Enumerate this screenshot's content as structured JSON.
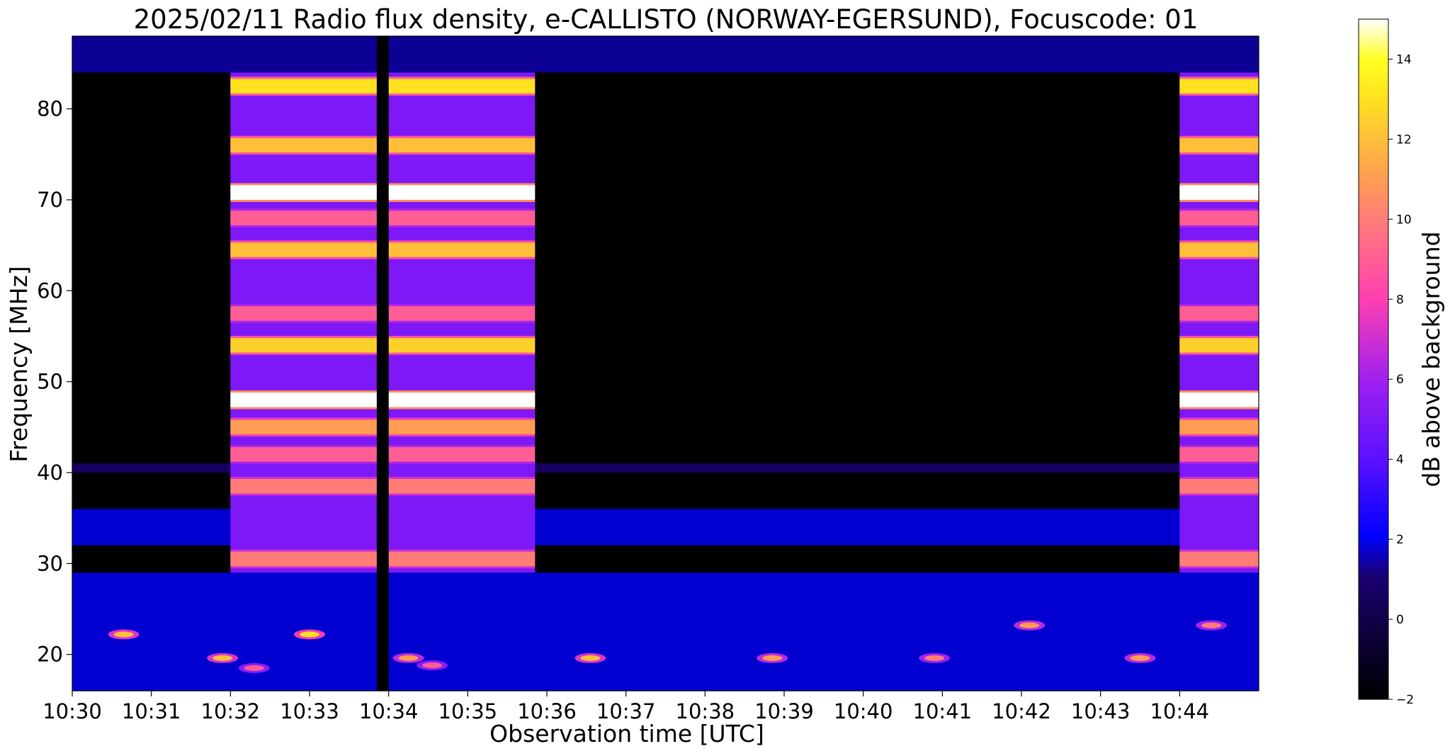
{
  "chart_data": {
    "type": "heatmap",
    "title": "2025/02/11  Radio flux density, e-CALLISTO (NORWAY-EGERSUND), Focuscode: 01",
    "xlabel": "Observation time [UTC]",
    "ylabel": "Frequency [MHz]",
    "colorbar_label": "dB above background",
    "colormap": "gnuplot2",
    "x_ticks": [
      "10:30",
      "10:31",
      "10:32",
      "10:33",
      "10:34",
      "10:35",
      "10:36",
      "10:37",
      "10:38",
      "10:39",
      "10:40",
      "10:41",
      "10:42",
      "10:43",
      "10:44"
    ],
    "xlim_minutes": [
      0,
      15
    ],
    "y_ticks": [
      20,
      30,
      40,
      50,
      60,
      70,
      80
    ],
    "ylim": [
      16,
      88
    ],
    "colorbar_ticks": [
      -2,
      0,
      2,
      4,
      6,
      8,
      10,
      12,
      14
    ],
    "clim": [
      -2,
      15
    ],
    "active_intervals_minutes": [
      [
        2.0,
        3.85
      ],
      [
        4.0,
        5.85
      ],
      [
        14.0,
        15.0
      ]
    ],
    "data_gap_minutes": [
      3.85,
      4.0
    ],
    "emission_bands_mhz": [
      {
        "freq": 82.5,
        "db": 13
      },
      {
        "freq": 76,
        "db": 12
      },
      {
        "freq": 70.8,
        "db": 15
      },
      {
        "freq": 68,
        "db": 9
      },
      {
        "freq": 64.5,
        "db": 12
      },
      {
        "freq": 57.5,
        "db": 9
      },
      {
        "freq": 54,
        "db": 12.5
      },
      {
        "freq": 48,
        "db": 15
      },
      {
        "freq": 45,
        "db": 11
      },
      {
        "freq": 42,
        "db": 9
      },
      {
        "freq": 38.5,
        "db": 10
      },
      {
        "freq": 30.5,
        "db": 10
      }
    ],
    "background_bands_mhz": [
      {
        "freq_range": [
          84,
          88
        ],
        "db": 1.5
      },
      {
        "freq_range": [
          40,
          41
        ],
        "db": 1
      },
      {
        "freq_range": [
          32,
          36
        ],
        "db": 2
      },
      {
        "freq_range": [
          16,
          29
        ],
        "db": 2
      }
    ],
    "bright_spots": [
      {
        "t": 0.65,
        "freq": 22.2,
        "db": 12
      },
      {
        "t": 1.9,
        "freq": 19.6,
        "db": 12
      },
      {
        "t": 2.3,
        "freq": 18.5,
        "db": 9
      },
      {
        "t": 3.0,
        "freq": 22.2,
        "db": 13
      },
      {
        "t": 4.25,
        "freq": 19.6,
        "db": 11
      },
      {
        "t": 4.55,
        "freq": 18.8,
        "db": 9
      },
      {
        "t": 6.55,
        "freq": 19.6,
        "db": 12
      },
      {
        "t": 8.85,
        "freq": 19.6,
        "db": 11
      },
      {
        "t": 10.9,
        "freq": 19.6,
        "db": 10
      },
      {
        "t": 12.1,
        "freq": 23.2,
        "db": 11
      },
      {
        "t": 13.5,
        "freq": 19.6,
        "db": 11
      },
      {
        "t": 14.4,
        "freq": 23.2,
        "db": 10
      }
    ]
  }
}
